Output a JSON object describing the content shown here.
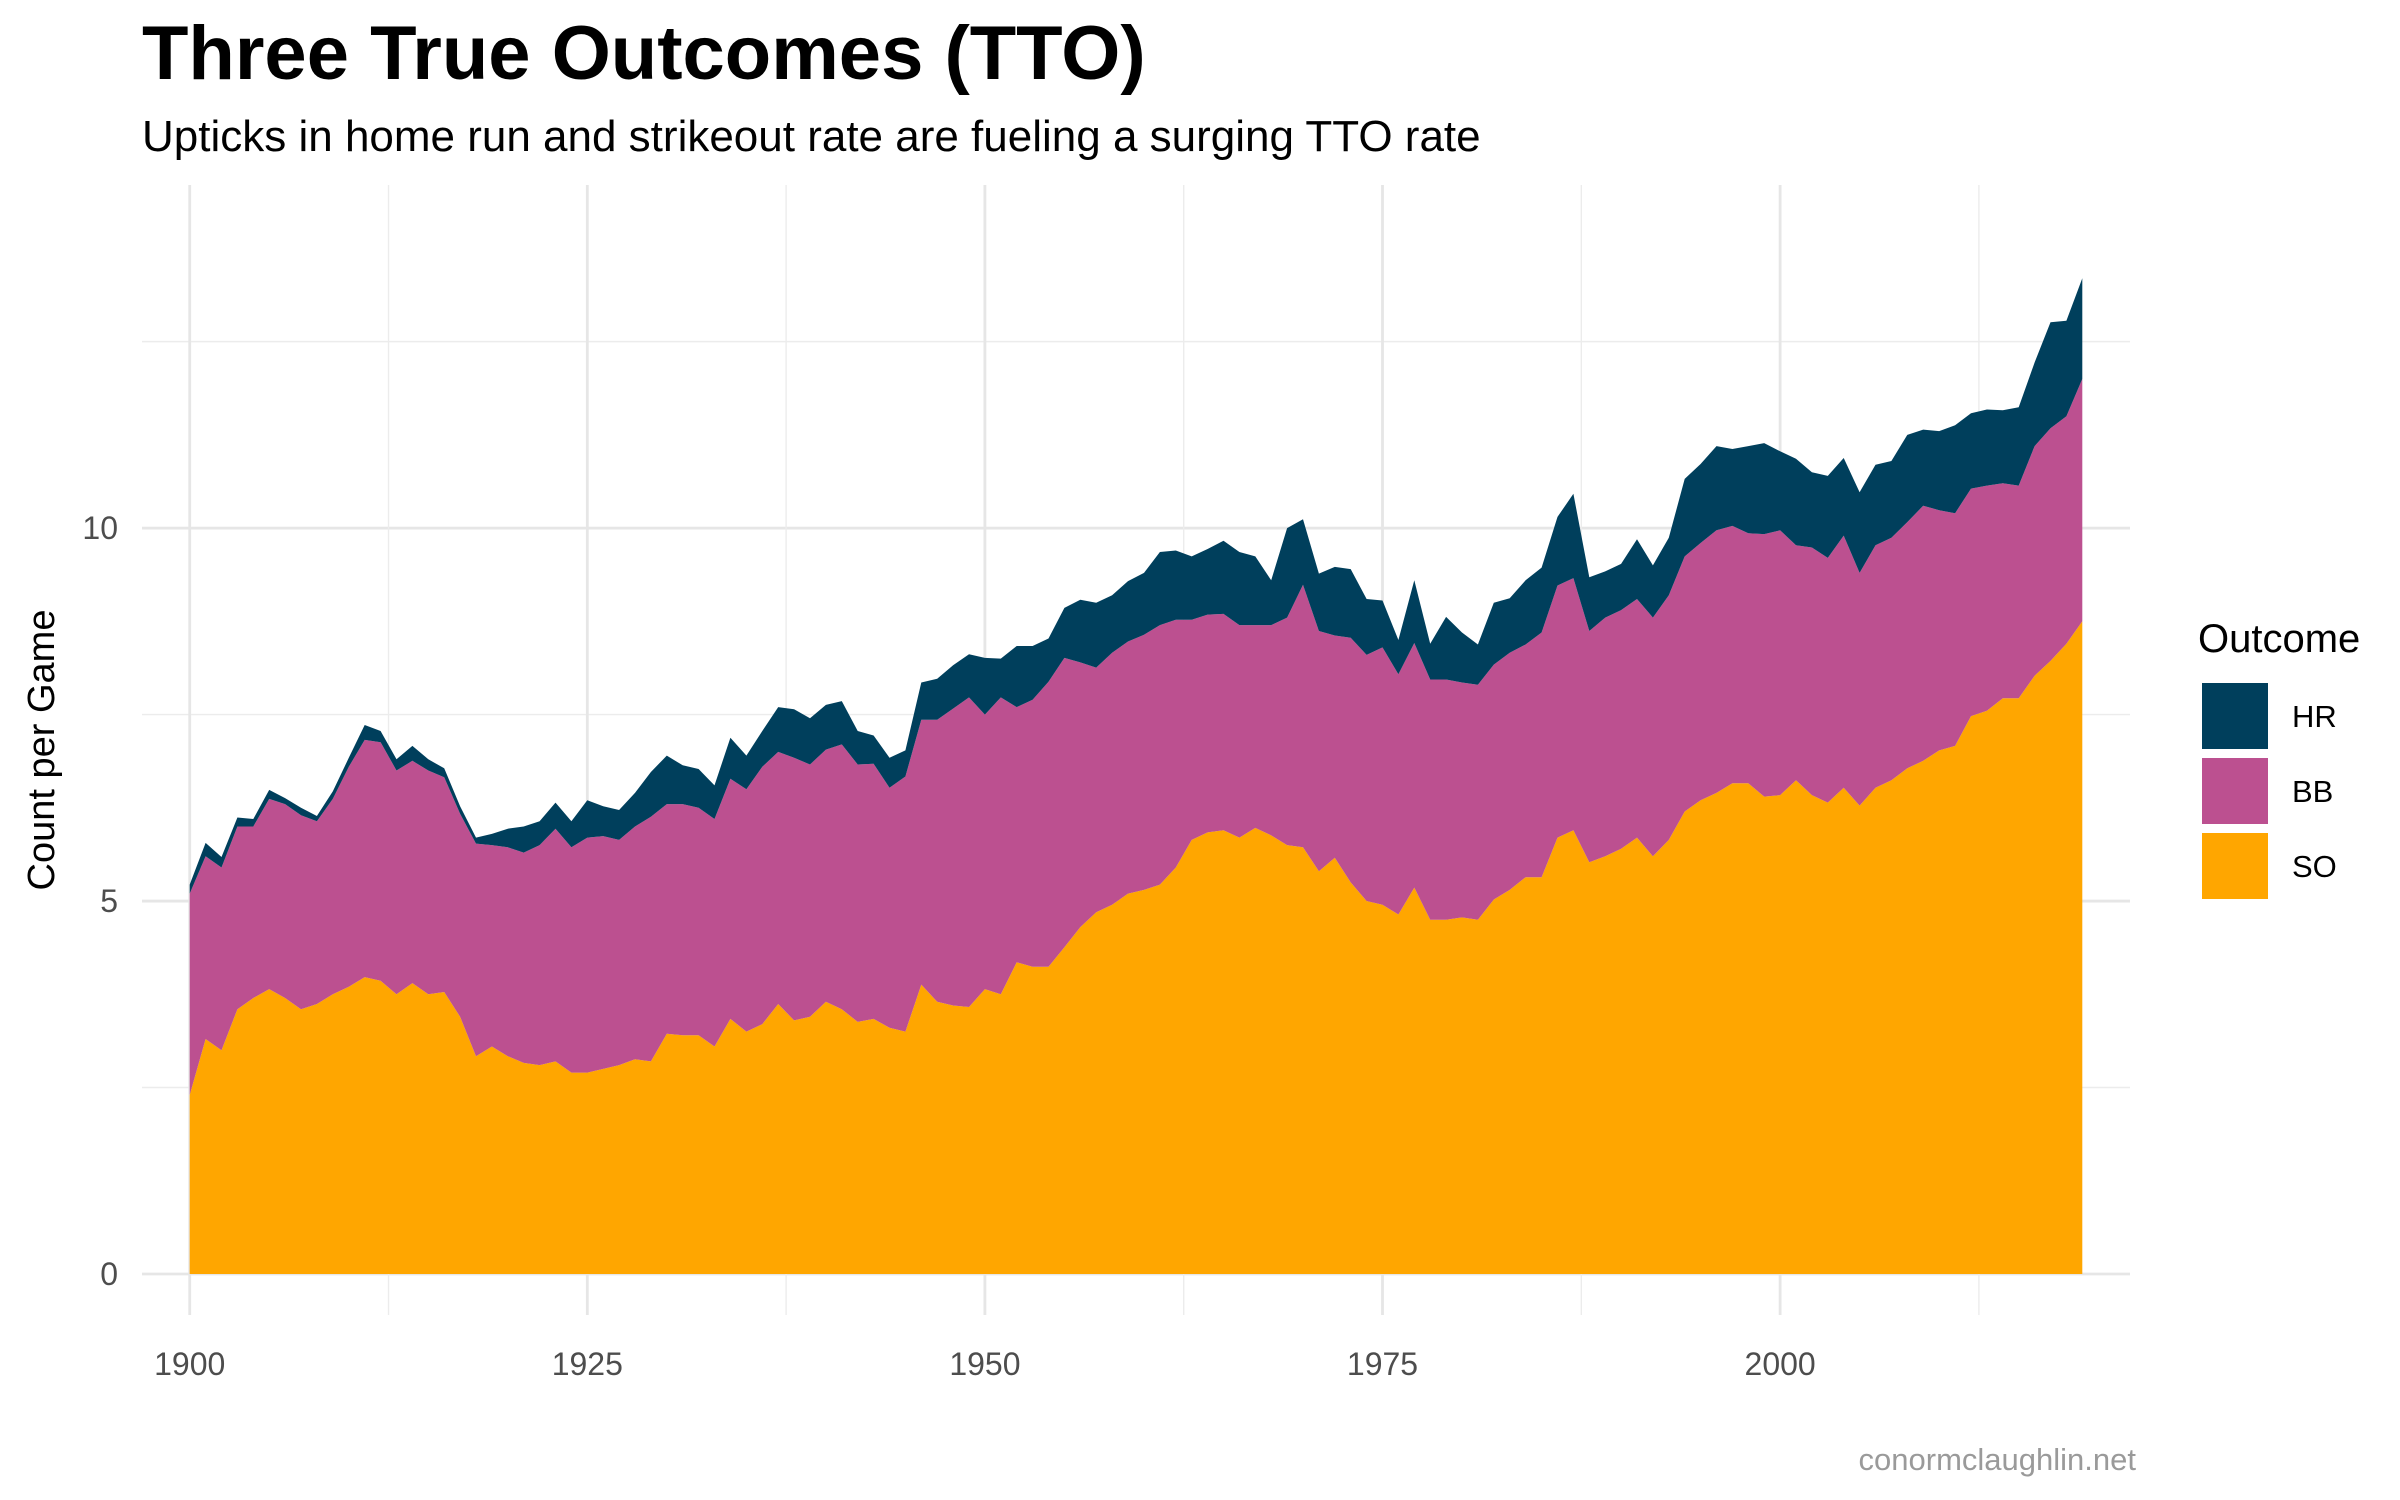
{
  "header": {
    "title": "Three True Outcomes (TTO)",
    "subtitle": "Upticks in home run and strikeout rate are fueling a surging TTO rate"
  },
  "caption": "conormclaughlin.net",
  "chart_data": {
    "type": "area",
    "stacked": true,
    "xlabel": "",
    "ylabel": "Count per Game",
    "xlim": [
      1897,
      2022
    ],
    "ylim": [
      -0.55,
      14.6
    ],
    "x_ticks": [
      1900,
      1925,
      1950,
      1975,
      2000
    ],
    "y_ticks": [
      0,
      5,
      10
    ],
    "grid": true,
    "legend": {
      "title": "Outcome",
      "position": "right",
      "entries": [
        {
          "key": "HR",
          "label": "HR",
          "color": "#003f5c"
        },
        {
          "key": "BB",
          "label": "BB",
          "color": "#bc5090"
        },
        {
          "key": "SO",
          "label": "SO",
          "color": "#ffa600"
        }
      ]
    },
    "x": [
      1900,
      1901,
      1902,
      1903,
      1904,
      1905,
      1906,
      1907,
      1908,
      1909,
      1910,
      1911,
      1912,
      1913,
      1914,
      1915,
      1916,
      1917,
      1918,
      1919,
      1920,
      1921,
      1922,
      1923,
      1924,
      1925,
      1926,
      1927,
      1928,
      1929,
      1930,
      1931,
      1932,
      1933,
      1934,
      1935,
      1936,
      1937,
      1938,
      1939,
      1940,
      1941,
      1942,
      1943,
      1944,
      1945,
      1946,
      1947,
      1948,
      1949,
      1950,
      1951,
      1952,
      1953,
      1954,
      1955,
      1956,
      1957,
      1958,
      1959,
      1960,
      1961,
      1962,
      1963,
      1964,
      1965,
      1966,
      1967,
      1968,
      1969,
      1970,
      1971,
      1972,
      1973,
      1974,
      1975,
      1976,
      1977,
      1978,
      1979,
      1980,
      1981,
      1982,
      1983,
      1984,
      1985,
      1986,
      1987,
      1988,
      1989,
      1990,
      1991,
      1992,
      1993,
      1994,
      1995,
      1996,
      1997,
      1998,
      1999,
      2000,
      2001,
      2002,
      2003,
      2004,
      2005,
      2006,
      2007,
      2008,
      2009,
      2010,
      2011,
      2012,
      2013,
      2014,
      2015,
      2016,
      2017,
      2018,
      2019
    ],
    "series": [
      {
        "name": "SO",
        "color": "#ffa600",
        "values": [
          2.4,
          3.15,
          3.0,
          3.55,
          3.7,
          3.82,
          3.7,
          3.55,
          3.62,
          3.75,
          3.85,
          3.98,
          3.93,
          3.75,
          3.9,
          3.75,
          3.78,
          3.45,
          2.92,
          3.05,
          2.92,
          2.83,
          2.8,
          2.85,
          2.7,
          2.7,
          2.75,
          2.8,
          2.88,
          2.85,
          3.22,
          3.2,
          3.2,
          3.05,
          3.42,
          3.25,
          3.35,
          3.62,
          3.4,
          3.45,
          3.65,
          3.55,
          3.38,
          3.42,
          3.3,
          3.25,
          3.88,
          3.65,
          3.6,
          3.58,
          3.82,
          3.75,
          4.18,
          4.12,
          4.12,
          4.38,
          4.65,
          4.85,
          4.95,
          5.1,
          5.15,
          5.22,
          5.45,
          5.82,
          5.92,
          5.95,
          5.85,
          5.98,
          5.88,
          5.75,
          5.72,
          5.4,
          5.58,
          5.25,
          5.0,
          4.95,
          4.82,
          5.18,
          4.75,
          4.75,
          4.78,
          4.75,
          5.02,
          5.15,
          5.32,
          5.32,
          5.85,
          5.95,
          5.52,
          5.6,
          5.7,
          5.85,
          5.6,
          5.82,
          6.2,
          6.35,
          6.45,
          6.58,
          6.58,
          6.4,
          6.42,
          6.62,
          6.42,
          6.32,
          6.52,
          6.28,
          6.52,
          6.62,
          6.78,
          6.88,
          7.02,
          7.08,
          7.48,
          7.55,
          7.72,
          7.72,
          8.02,
          8.22,
          8.45,
          8.75
        ]
      },
      {
        "name": "BB",
        "color": "#bc5090",
        "values": [
          2.7,
          2.45,
          2.45,
          2.45,
          2.3,
          2.55,
          2.6,
          2.6,
          2.45,
          2.62,
          2.95,
          3.18,
          3.2,
          3.0,
          2.98,
          3.0,
          2.88,
          2.72,
          2.85,
          2.7,
          2.8,
          2.82,
          2.95,
          3.12,
          3.02,
          3.15,
          3.12,
          3.02,
          3.12,
          3.28,
          3.08,
          3.1,
          3.05,
          3.05,
          3.22,
          3.25,
          3.45,
          3.38,
          3.52,
          3.38,
          3.38,
          3.55,
          3.45,
          3.42,
          3.22,
          3.42,
          3.55,
          3.78,
          3.98,
          4.15,
          3.68,
          3.98,
          3.42,
          3.58,
          3.82,
          3.88,
          3.55,
          3.28,
          3.38,
          3.38,
          3.42,
          3.48,
          3.32,
          2.95,
          2.92,
          2.9,
          2.85,
          2.72,
          2.82,
          3.05,
          3.52,
          3.22,
          2.98,
          3.28,
          3.3,
          3.45,
          3.22,
          3.28,
          3.22,
          3.22,
          3.15,
          3.15,
          3.15,
          3.18,
          3.12,
          3.28,
          3.38,
          3.38,
          3.1,
          3.2,
          3.2,
          3.2,
          3.2,
          3.28,
          3.42,
          3.45,
          3.52,
          3.45,
          3.35,
          3.52,
          3.55,
          3.15,
          3.32,
          3.28,
          3.38,
          3.12,
          3.25,
          3.25,
          3.3,
          3.42,
          3.22,
          3.12,
          3.05,
          3.02,
          2.88,
          2.85,
          3.08,
          3.12,
          3.05,
          3.25
        ]
      },
      {
        "name": "HR",
        "color": "#003f5c",
        "values": [
          0.12,
          0.18,
          0.14,
          0.12,
          0.1,
          0.12,
          0.08,
          0.1,
          0.07,
          0.1,
          0.12,
          0.2,
          0.15,
          0.15,
          0.2,
          0.15,
          0.12,
          0.1,
          0.08,
          0.15,
          0.25,
          0.35,
          0.32,
          0.35,
          0.35,
          0.5,
          0.4,
          0.4,
          0.45,
          0.6,
          0.65,
          0.52,
          0.52,
          0.45,
          0.55,
          0.45,
          0.48,
          0.6,
          0.65,
          0.62,
          0.6,
          0.58,
          0.45,
          0.38,
          0.4,
          0.35,
          0.5,
          0.55,
          0.58,
          0.58,
          0.76,
          0.52,
          0.82,
          0.72,
          0.58,
          0.67,
          0.84,
          0.87,
          0.77,
          0.81,
          0.83,
          0.98,
          0.93,
          0.85,
          0.88,
          0.98,
          0.98,
          0.92,
          0.6,
          1.2,
          0.88,
          0.77,
          0.92,
          0.92,
          0.75,
          0.63,
          0.46,
          0.84,
          0.48,
          0.84,
          0.67,
          0.54,
          0.83,
          0.73,
          0.86,
          0.87,
          0.92,
          1.13,
          0.72,
          0.62,
          0.62,
          0.8,
          0.7,
          0.77,
          1.04,
          1.06,
          1.13,
          1.03,
          1.17,
          1.22,
          1.06,
          1.16,
          1.01,
          1.1,
          1.04,
          1.08,
          1.08,
          1.03,
          1.17,
          1.02,
          1.06,
          1.18,
          1.01,
          1.02,
          0.98,
          1.05,
          1.12,
          1.42,
          1.28,
          1.35
        ]
      }
    ]
  }
}
